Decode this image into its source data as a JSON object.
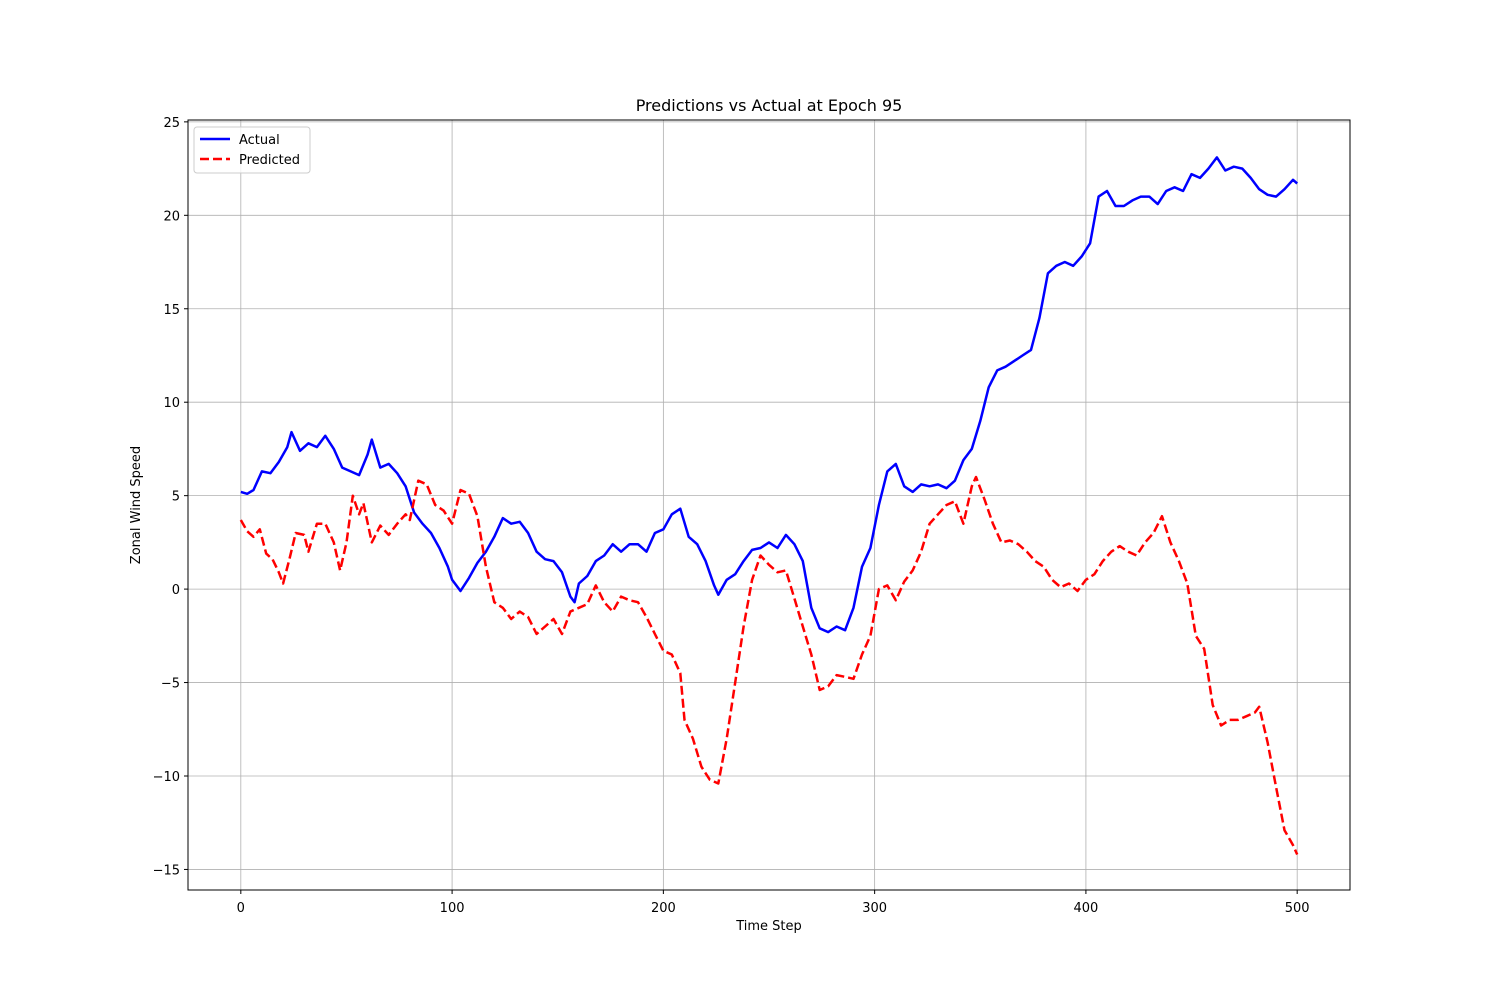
{
  "chart_data": {
    "type": "line",
    "title": "Predictions vs Actual at Epoch 95",
    "xlabel": "Time Step",
    "ylabel": "Zonal Wind Speed",
    "xlim": [
      -25,
      525
    ],
    "ylim": [
      -16.1,
      25.1
    ],
    "xticks": [
      0,
      100,
      200,
      300,
      400,
      500
    ],
    "yticks": [
      -15,
      -10,
      -5,
      0,
      5,
      10,
      15,
      20,
      25
    ],
    "grid": true,
    "legend_position": "top-left",
    "series": [
      {
        "name": "Actual",
        "color": "#0000ff",
        "style": "solid",
        "points": [
          [
            0,
            5.2
          ],
          [
            3,
            5.1
          ],
          [
            6,
            5.3
          ],
          [
            10,
            6.3
          ],
          [
            14,
            6.2
          ],
          [
            18,
            6.8
          ],
          [
            22,
            7.6
          ],
          [
            24,
            8.4
          ],
          [
            28,
            7.4
          ],
          [
            32,
            7.8
          ],
          [
            36,
            7.6
          ],
          [
            40,
            8.2
          ],
          [
            44,
            7.5
          ],
          [
            48,
            6.5
          ],
          [
            52,
            6.3
          ],
          [
            56,
            6.1
          ],
          [
            60,
            7.2
          ],
          [
            62,
            8.0
          ],
          [
            66,
            6.5
          ],
          [
            70,
            6.7
          ],
          [
            74,
            6.2
          ],
          [
            78,
            5.5
          ],
          [
            82,
            4.1
          ],
          [
            86,
            3.5
          ],
          [
            90,
            3.0
          ],
          [
            94,
            2.2
          ],
          [
            98,
            1.2
          ],
          [
            100,
            0.5
          ],
          [
            104,
            -0.1
          ],
          [
            108,
            0.6
          ],
          [
            112,
            1.4
          ],
          [
            116,
            2.0
          ],
          [
            120,
            2.8
          ],
          [
            124,
            3.8
          ],
          [
            128,
            3.5
          ],
          [
            132,
            3.6
          ],
          [
            136,
            3.0
          ],
          [
            140,
            2.0
          ],
          [
            144,
            1.6
          ],
          [
            148,
            1.5
          ],
          [
            152,
            0.9
          ],
          [
            156,
            -0.4
          ],
          [
            158,
            -0.7
          ],
          [
            160,
            0.3
          ],
          [
            164,
            0.7
          ],
          [
            168,
            1.5
          ],
          [
            172,
            1.8
          ],
          [
            176,
            2.4
          ],
          [
            180,
            2.0
          ],
          [
            184,
            2.4
          ],
          [
            188,
            2.4
          ],
          [
            192,
            2.0
          ],
          [
            196,
            3.0
          ],
          [
            200,
            3.2
          ],
          [
            204,
            4.0
          ],
          [
            208,
            4.3
          ],
          [
            212,
            2.8
          ],
          [
            216,
            2.4
          ],
          [
            220,
            1.5
          ],
          [
            224,
            0.2
          ],
          [
            226,
            -0.3
          ],
          [
            230,
            0.5
          ],
          [
            234,
            0.8
          ],
          [
            238,
            1.5
          ],
          [
            242,
            2.1
          ],
          [
            246,
            2.2
          ],
          [
            250,
            2.5
          ],
          [
            254,
            2.2
          ],
          [
            258,
            2.9
          ],
          [
            262,
            2.4
          ],
          [
            266,
            1.5
          ],
          [
            270,
            -1.0
          ],
          [
            274,
            -2.1
          ],
          [
            278,
            -2.3
          ],
          [
            282,
            -2.0
          ],
          [
            286,
            -2.2
          ],
          [
            290,
            -1.0
          ],
          [
            294,
            1.2
          ],
          [
            298,
            2.2
          ],
          [
            302,
            4.5
          ],
          [
            306,
            6.3
          ],
          [
            310,
            6.7
          ],
          [
            314,
            5.5
          ],
          [
            318,
            5.2
          ],
          [
            322,
            5.6
          ],
          [
            326,
            5.5
          ],
          [
            330,
            5.6
          ],
          [
            334,
            5.4
          ],
          [
            338,
            5.8
          ],
          [
            342,
            6.9
          ],
          [
            346,
            7.5
          ],
          [
            350,
            9.0
          ],
          [
            354,
            10.8
          ],
          [
            358,
            11.7
          ],
          [
            362,
            11.9
          ],
          [
            366,
            12.2
          ],
          [
            370,
            12.5
          ],
          [
            374,
            12.8
          ],
          [
            378,
            14.5
          ],
          [
            382,
            16.9
          ],
          [
            386,
            17.3
          ],
          [
            390,
            17.5
          ],
          [
            394,
            17.3
          ],
          [
            398,
            17.8
          ],
          [
            402,
            18.5
          ],
          [
            406,
            21.0
          ],
          [
            410,
            21.3
          ],
          [
            414,
            20.5
          ],
          [
            418,
            20.5
          ],
          [
            422,
            20.8
          ],
          [
            426,
            21.0
          ],
          [
            430,
            21.0
          ],
          [
            434,
            20.6
          ],
          [
            438,
            21.3
          ],
          [
            442,
            21.5
          ],
          [
            446,
            21.3
          ],
          [
            450,
            22.2
          ],
          [
            454,
            22.0
          ],
          [
            458,
            22.5
          ],
          [
            462,
            23.1
          ],
          [
            466,
            22.4
          ],
          [
            470,
            22.6
          ],
          [
            474,
            22.5
          ],
          [
            478,
            22.0
          ],
          [
            482,
            21.4
          ],
          [
            486,
            21.1
          ],
          [
            490,
            21.0
          ],
          [
            494,
            21.4
          ],
          [
            498,
            21.9
          ],
          [
            500,
            21.7
          ]
        ]
      },
      {
        "name": "Predicted",
        "color": "#ff0000",
        "style": "dashed",
        "points": [
          [
            0,
            3.7
          ],
          [
            3,
            3.1
          ],
          [
            6,
            2.8
          ],
          [
            9,
            3.2
          ],
          [
            12,
            1.9
          ],
          [
            15,
            1.6
          ],
          [
            18,
            0.9
          ],
          [
            20,
            0.3
          ],
          [
            23,
            1.6
          ],
          [
            26,
            3.0
          ],
          [
            30,
            2.9
          ],
          [
            32,
            2.0
          ],
          [
            36,
            3.5
          ],
          [
            40,
            3.5
          ],
          [
            44,
            2.5
          ],
          [
            47,
            1.0
          ],
          [
            50,
            2.5
          ],
          [
            53,
            5.0
          ],
          [
            56,
            4.0
          ],
          [
            58,
            4.6
          ],
          [
            62,
            2.5
          ],
          [
            66,
            3.4
          ],
          [
            70,
            2.9
          ],
          [
            74,
            3.5
          ],
          [
            78,
            4.0
          ],
          [
            80,
            3.7
          ],
          [
            84,
            5.8
          ],
          [
            88,
            5.6
          ],
          [
            92,
            4.5
          ],
          [
            96,
            4.2
          ],
          [
            100,
            3.5
          ],
          [
            104,
            5.3
          ],
          [
            108,
            5.1
          ],
          [
            112,
            3.9
          ],
          [
            116,
            1.2
          ],
          [
            120,
            -0.7
          ],
          [
            124,
            -1.0
          ],
          [
            128,
            -1.6
          ],
          [
            132,
            -1.2
          ],
          [
            136,
            -1.5
          ],
          [
            140,
            -2.4
          ],
          [
            144,
            -2.0
          ],
          [
            148,
            -1.6
          ],
          [
            152,
            -2.4
          ],
          [
            156,
            -1.2
          ],
          [
            160,
            -1.0
          ],
          [
            164,
            -0.8
          ],
          [
            168,
            0.2
          ],
          [
            172,
            -0.7
          ],
          [
            176,
            -1.2
          ],
          [
            180,
            -0.4
          ],
          [
            184,
            -0.6
          ],
          [
            188,
            -0.7
          ],
          [
            192,
            -1.5
          ],
          [
            196,
            -2.4
          ],
          [
            200,
            -3.3
          ],
          [
            204,
            -3.5
          ],
          [
            208,
            -4.5
          ],
          [
            210,
            -7.0
          ],
          [
            214,
            -8.0
          ],
          [
            218,
            -9.5
          ],
          [
            222,
            -10.2
          ],
          [
            226,
            -10.4
          ],
          [
            230,
            -8.0
          ],
          [
            234,
            -5.0
          ],
          [
            238,
            -2.0
          ],
          [
            242,
            0.5
          ],
          [
            246,
            1.8
          ],
          [
            250,
            1.3
          ],
          [
            254,
            0.9
          ],
          [
            258,
            1.0
          ],
          [
            262,
            -0.5
          ],
          [
            266,
            -2.0
          ],
          [
            270,
            -3.5
          ],
          [
            274,
            -5.4
          ],
          [
            278,
            -5.2
          ],
          [
            282,
            -4.6
          ],
          [
            286,
            -4.7
          ],
          [
            290,
            -4.8
          ],
          [
            294,
            -3.5
          ],
          [
            298,
            -2.5
          ],
          [
            302,
            0.0
          ],
          [
            306,
            0.2
          ],
          [
            310,
            -0.6
          ],
          [
            314,
            0.4
          ],
          [
            318,
            1.0
          ],
          [
            322,
            2.0
          ],
          [
            326,
            3.5
          ],
          [
            330,
            4.0
          ],
          [
            334,
            4.5
          ],
          [
            338,
            4.7
          ],
          [
            342,
            3.5
          ],
          [
            346,
            5.5
          ],
          [
            348,
            6.0
          ],
          [
            352,
            4.8
          ],
          [
            356,
            3.5
          ],
          [
            360,
            2.5
          ],
          [
            364,
            2.6
          ],
          [
            368,
            2.4
          ],
          [
            372,
            2.0
          ],
          [
            376,
            1.5
          ],
          [
            380,
            1.2
          ],
          [
            384,
            0.5
          ],
          [
            388,
            0.1
          ],
          [
            392,
            0.3
          ],
          [
            396,
            -0.1
          ],
          [
            400,
            0.5
          ],
          [
            404,
            0.8
          ],
          [
            408,
            1.5
          ],
          [
            412,
            2.0
          ],
          [
            416,
            2.3
          ],
          [
            420,
            2.0
          ],
          [
            424,
            1.8
          ],
          [
            428,
            2.5
          ],
          [
            432,
            3.0
          ],
          [
            436,
            3.9
          ],
          [
            440,
            2.5
          ],
          [
            444,
            1.5
          ],
          [
            448,
            0.3
          ],
          [
            452,
            -2.5
          ],
          [
            456,
            -3.2
          ],
          [
            460,
            -6.2
          ],
          [
            464,
            -7.3
          ],
          [
            468,
            -7.0
          ],
          [
            472,
            -7.0
          ],
          [
            476,
            -6.8
          ],
          [
            480,
            -6.6
          ],
          [
            482,
            -6.3
          ],
          [
            486,
            -8.2
          ],
          [
            490,
            -10.6
          ],
          [
            494,
            -12.9
          ],
          [
            498,
            -13.7
          ],
          [
            500,
            -14.2
          ]
        ]
      }
    ]
  }
}
